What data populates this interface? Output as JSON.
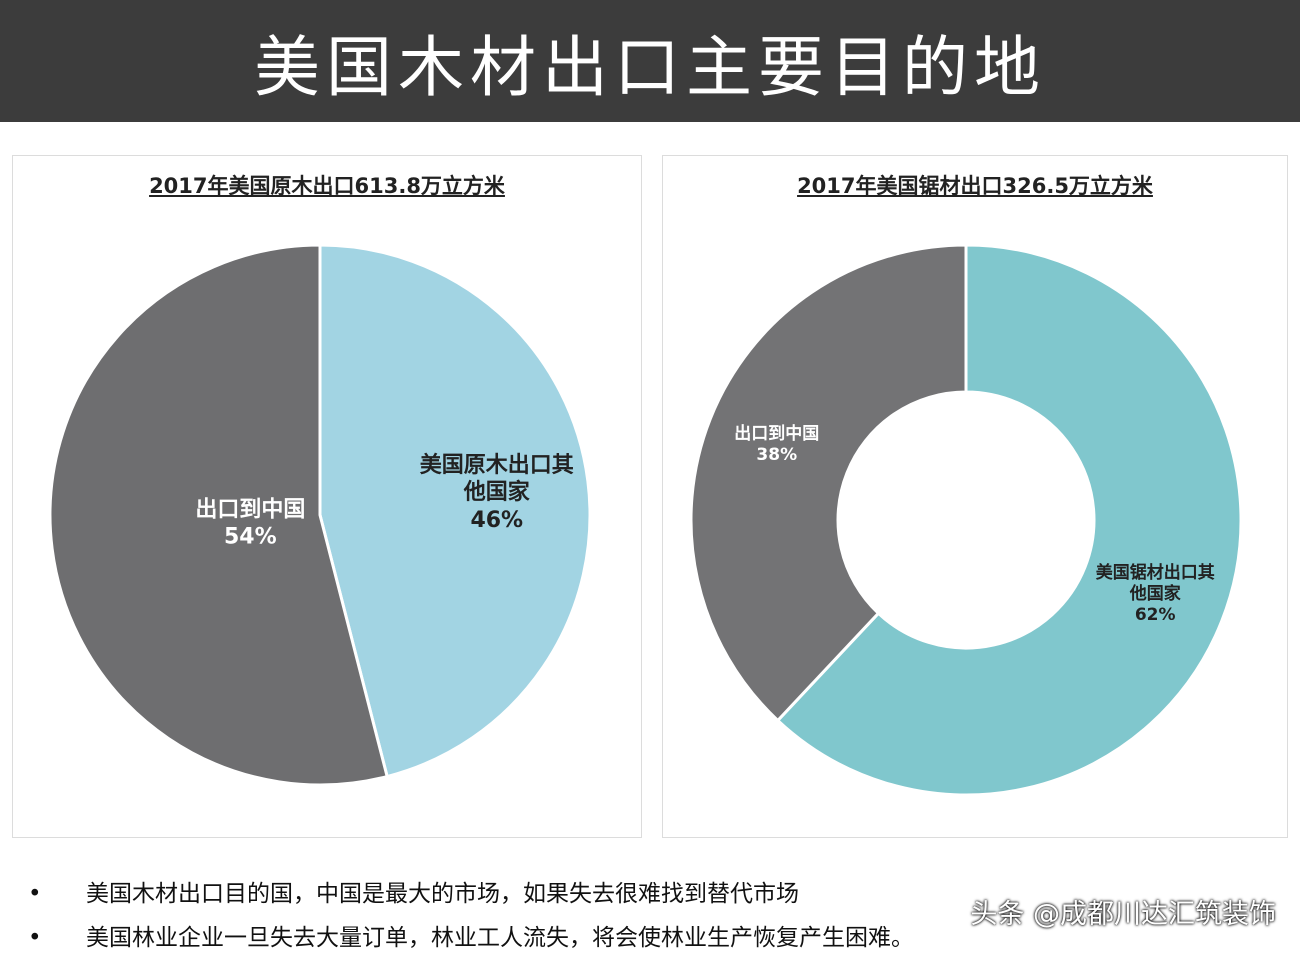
{
  "header": {
    "title": "美国木材出口主要目的地"
  },
  "chart_data": [
    {
      "type": "pie",
      "title": "2017年美国原木出口613.8万立方米",
      "categories": [
        "美国原木出口其他国家",
        "出口到中国"
      ],
      "values": [
        46,
        54
      ],
      "value_labels": [
        "46%",
        "54%"
      ],
      "colors": [
        "#a2d4e3",
        "#6e6e70"
      ]
    },
    {
      "type": "donut",
      "title": "2017年美国锯材出口326.5万立方米",
      "categories": [
        "美国锯材出口其他国家",
        "出口到中国"
      ],
      "values": [
        62,
        38
      ],
      "value_labels": [
        "62%",
        "38%"
      ],
      "colors": [
        "#80c7cd",
        "#737375"
      ]
    }
  ],
  "bullets": [
    "美国木材出口目的国，中国是最大的市场，如果失去很难找到替代市场",
    "美国林业企业一旦失去大量订单，林业工人流失，将会使林业生产恢复产生困难。"
  ],
  "watermark": "头条 @成都川达汇筑装饰"
}
